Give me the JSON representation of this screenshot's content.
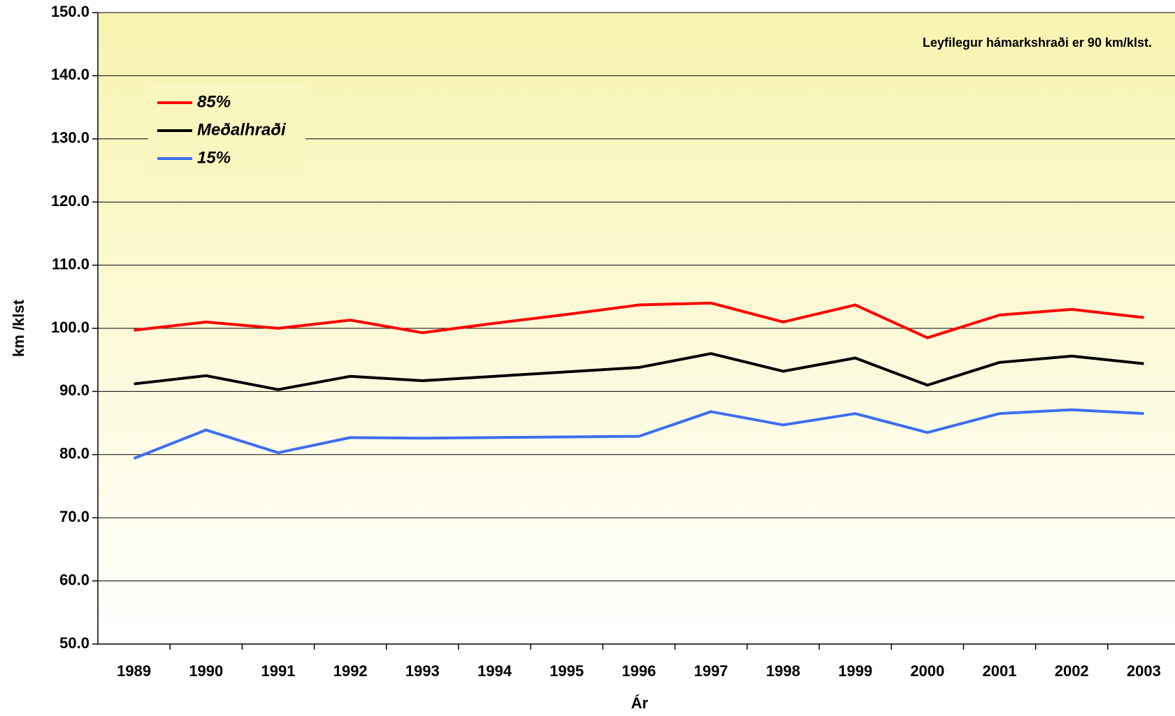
{
  "chart_data": {
    "type": "line",
    "annotation": "Leyfilegur hámarkshraði er 90 km/klst.",
    "xlabel": "Ár",
    "ylabel": "km /klst",
    "categories": [
      "1989",
      "1990",
      "1991",
      "1992",
      "1993",
      "1994",
      "1995",
      "1996",
      "1997",
      "1998",
      "1999",
      "2000",
      "2001",
      "2002",
      "2003"
    ],
    "series": [
      {
        "name": "85%",
        "color": "#ff0000",
        "values": [
          99.7,
          101.0,
          100.0,
          101.3,
          99.3,
          100.8,
          102.2,
          103.7,
          104.0,
          101.0,
          103.7,
          98.5,
          102.1,
          103.0,
          101.7
        ]
      },
      {
        "name": "Meðalhraði",
        "color": "#000000",
        "values": [
          91.2,
          92.5,
          90.3,
          92.4,
          91.7,
          92.4,
          93.1,
          93.8,
          96.0,
          93.2,
          95.3,
          91.0,
          94.6,
          95.6,
          94.4
        ]
      },
      {
        "name": "15%",
        "color": "#3c6ef0",
        "values": [
          79.4,
          83.9,
          80.3,
          82.7,
          82.6,
          82.7,
          82.8,
          82.9,
          86.8,
          84.7,
          86.5,
          83.5,
          86.5,
          87.1,
          86.5
        ]
      }
    ],
    "ylim": [
      50,
      150
    ],
    "yticks": [
      {
        "value": 50,
        "label": "50.0"
      },
      {
        "value": 60,
        "label": "60.0"
      },
      {
        "value": 70,
        "label": "70.0"
      },
      {
        "value": 80,
        "label": "80.0"
      },
      {
        "value": 90,
        "label": "90.0"
      },
      {
        "value": 100,
        "label": "100.0"
      },
      {
        "value": 110,
        "label": "110.0"
      },
      {
        "value": 120,
        "label": "120.0"
      },
      {
        "value": 130,
        "label": "130.0"
      },
      {
        "value": 140,
        "label": "140.0"
      },
      {
        "value": 150,
        "label": "150.0"
      }
    ],
    "grid": true,
    "legend": "upper left"
  }
}
